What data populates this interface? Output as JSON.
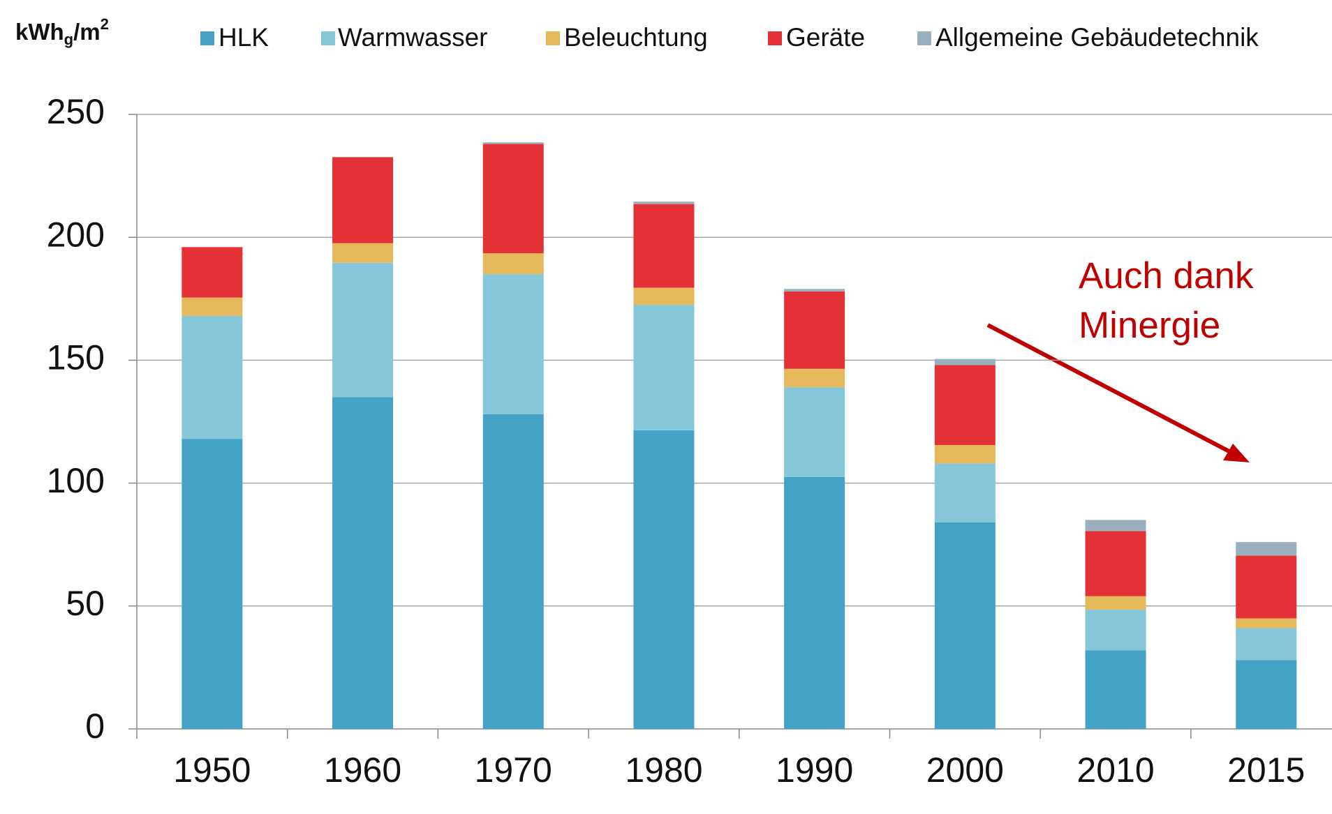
{
  "chart_data": {
    "type": "stacked_bar",
    "y_label": {
      "base": "kWh",
      "sub": "g",
      "mid": "/m",
      "sup": "2"
    },
    "categories": [
      "1950",
      "1960",
      "1970",
      "1980",
      "1990",
      "2000",
      "2010",
      "2015"
    ],
    "series": [
      {
        "name": "HLK",
        "color": "#43a2c6",
        "values": [
          118,
          135,
          128,
          121.5,
          102.5,
          84,
          32,
          28
        ]
      },
      {
        "name": "Warmwasser",
        "color": "#85c6d9",
        "values": [
          50,
          54.6,
          57,
          51,
          36.5,
          24,
          16.5,
          13
        ]
      },
      {
        "name": "Beleuchtung",
        "color": "#e6b85c",
        "values": [
          7.5,
          8,
          8.5,
          7,
          7.5,
          7.5,
          5.5,
          4
        ]
      },
      {
        "name": "Geräte",
        "color": "#e33136",
        "values": [
          20.5,
          35,
          44.5,
          34,
          31.5,
          32.5,
          26.5,
          25.5
        ]
      },
      {
        "name": "Allgemeine Gebäudetechnik",
        "color": "#99b1be",
        "values": [
          0,
          0,
          0.6,
          1,
          1,
          2.5,
          4.5,
          5.5
        ]
      }
    ],
    "ylim": [
      0,
      250
    ],
    "yticks": [
      0,
      50,
      100,
      150,
      200,
      250
    ],
    "grid": true,
    "annotation": {
      "lines": [
        "Auch dank",
        "Minergie"
      ],
      "color": "#c00000"
    }
  }
}
